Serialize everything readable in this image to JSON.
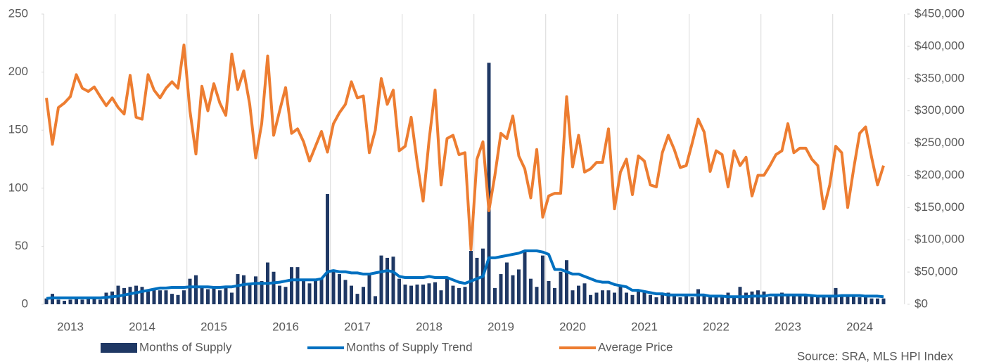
{
  "chart_data": {
    "type": "bar_line",
    "categories": [
      null,
      null,
      null,
      null,
      "2013",
      null,
      null,
      null,
      null,
      null,
      null,
      null,
      null,
      null,
      null,
      null,
      "2014",
      null,
      null,
      null,
      null,
      null,
      null,
      null,
      null,
      null,
      null,
      null,
      "2015",
      null,
      null,
      null,
      null,
      null,
      null,
      null,
      null,
      null,
      null,
      null,
      "2016",
      null,
      null,
      null,
      null,
      null,
      null,
      null,
      null,
      null,
      null,
      null,
      "2017",
      null,
      null,
      null,
      null,
      null,
      null,
      null,
      null,
      null,
      null,
      null,
      "2018",
      null,
      null,
      null,
      null,
      null,
      null,
      null,
      null,
      null,
      null,
      null,
      "2019",
      null,
      null,
      null,
      null,
      null,
      null,
      null,
      null,
      null,
      null,
      null,
      "2020",
      null,
      null,
      null,
      null,
      null,
      null,
      null,
      null,
      null,
      null,
      null,
      "2021",
      null,
      null,
      null,
      null,
      null,
      null,
      null,
      null,
      null,
      null,
      null,
      "2022",
      null,
      null,
      null,
      null,
      null,
      null,
      null,
      null,
      null,
      null,
      null,
      "2023",
      null,
      null,
      null,
      null,
      null,
      null,
      null,
      null,
      null,
      null,
      null,
      "2024",
      null,
      null,
      null,
      null
    ],
    "series": [
      {
        "name": "Months of Supply",
        "kind": "bar",
        "color": "#1f3864",
        "values": [
          5,
          9,
          4,
          3,
          4,
          5,
          4,
          5,
          5,
          4,
          10,
          11,
          16,
          14,
          15,
          16,
          15,
          11,
          13,
          12,
          12,
          9,
          8,
          12,
          22,
          25,
          14,
          13,
          14,
          12,
          14,
          10,
          26,
          25,
          18,
          24,
          20,
          36,
          28,
          16,
          15,
          32,
          32,
          20,
          18,
          22,
          22,
          95,
          28,
          26,
          21,
          16,
          9,
          15,
          26,
          7,
          42,
          40,
          41,
          22,
          17,
          16,
          17,
          17,
          18,
          19,
          12,
          22,
          16,
          14,
          15,
          46,
          40,
          48,
          208,
          14,
          26,
          36,
          25,
          30,
          45,
          22,
          15,
          42,
          20,
          14,
          28,
          38,
          12,
          16,
          18,
          8,
          10,
          12,
          12,
          10,
          16,
          10,
          8,
          12,
          10,
          8,
          6,
          8,
          10,
          8,
          6,
          8,
          6,
          13,
          8,
          6,
          7,
          6,
          10,
          6,
          15,
          10,
          11,
          12,
          11,
          6,
          7,
          10,
          8,
          7,
          7,
          7,
          7,
          7,
          6,
          7,
          14,
          7,
          7,
          7,
          6,
          6,
          5,
          5,
          5
        ]
      },
      {
        "name": "Months of Supply Trend",
        "kind": "line",
        "color": "#0070c0",
        "values": [
          5,
          5.5,
          5.5,
          5.5,
          5.5,
          5.5,
          5.5,
          5.5,
          5.5,
          5.5,
          6,
          6.5,
          7,
          8,
          9,
          10,
          11,
          12,
          13,
          14,
          14,
          14.5,
          14.5,
          14.5,
          15,
          15,
          15,
          15,
          14.5,
          14.5,
          15,
          15,
          16,
          17,
          17.5,
          18,
          18,
          18,
          18.5,
          19,
          20,
          21,
          21,
          21,
          21,
          21,
          22,
          28,
          29,
          28,
          28,
          27,
          27,
          26,
          26,
          27,
          28,
          29,
          28,
          24,
          23,
          23,
          23,
          23,
          24,
          23,
          23,
          23,
          21,
          19,
          18,
          20,
          22,
          24,
          40,
          40,
          41,
          42,
          43,
          44,
          46,
          46,
          46,
          45,
          43,
          30,
          30,
          28,
          26,
          26,
          24,
          22,
          20,
          19,
          19,
          17,
          16,
          15,
          12,
          12,
          11,
          10,
          9,
          9,
          8,
          8,
          8,
          8,
          8,
          8,
          8,
          7,
          7,
          7,
          6.5,
          6.5,
          6.5,
          6.5,
          7,
          7,
          7,
          8,
          8,
          8,
          8,
          8,
          8,
          8,
          7.5,
          7,
          7,
          7,
          7,
          7.5,
          7.5,
          7.5,
          7.5,
          7,
          7,
          7,
          6.5
        ]
      },
      {
        "name": "Average Price",
        "kind": "line",
        "axis": "y2",
        "color": "#ed7d31",
        "values": [
          320000,
          248000,
          305000,
          312000,
          322000,
          356000,
          335000,
          330000,
          337000,
          322000,
          308000,
          320000,
          305000,
          295000,
          355000,
          290000,
          287000,
          356000,
          332000,
          320000,
          335000,
          345000,
          335000,
          402000,
          300000,
          233000,
          338000,
          300000,
          342000,
          312000,
          293000,
          388000,
          333000,
          362000,
          310000,
          227000,
          280000,
          385000,
          262000,
          300000,
          336000,
          265000,
          272000,
          252000,
          222000,
          245000,
          268000,
          236000,
          280000,
          297000,
          310000,
          345000,
          320000,
          323000,
          235000,
          270000,
          350000,
          310000,
          332000,
          238000,
          245000,
          290000,
          220000,
          160000,
          255000,
          332000,
          185000,
          257000,
          262000,
          232000,
          235000,
          85000,
          225000,
          252000,
          145000,
          200000,
          265000,
          257000,
          292000,
          230000,
          210000,
          165000,
          240000,
          135000,
          168000,
          172000,
          172000,
          322000,
          213000,
          262000,
          205000,
          210000,
          220000,
          220000,
          272000,
          148000,
          205000,
          225000,
          170000,
          230000,
          222000,
          185000,
          182000,
          235000,
          262000,
          240000,
          212000,
          215000,
          250000,
          287000,
          267000,
          206000,
          238000,
          232000,
          182000,
          238000,
          215000,
          228000,
          168000,
          200000,
          200000,
          215000,
          232000,
          238000,
          280000,
          235000,
          242000,
          242000,
          225000,
          215000,
          148000,
          185000,
          245000,
          235000,
          150000,
          210000,
          265000,
          275000,
          228000,
          185000,
          215000
        ]
      }
    ],
    "ylim": [
      0,
      250
    ],
    "yticks": [
      0,
      50,
      100,
      150,
      200,
      250
    ],
    "y2lim": [
      0,
      450000
    ],
    "y2ticks": [
      {
        "value": 0,
        "label": "$0"
      },
      {
        "value": 50000,
        "label": "$50,000"
      },
      {
        "value": 100000,
        "label": "$100,000"
      },
      {
        "value": 150000,
        "label": "$150,000"
      },
      {
        "value": 200000,
        "label": "$200,000"
      },
      {
        "value": 250000,
        "label": "$250,000"
      },
      {
        "value": 300000,
        "label": "$300,000"
      },
      {
        "value": 350000,
        "label": "$350,000"
      },
      {
        "value": 400000,
        "label": "$400,000"
      },
      {
        "value": 450000,
        "label": "$450,000"
      }
    ],
    "xgrid": true,
    "legend": "bottom",
    "source": "Source: SRA, MLS HPI Index"
  }
}
